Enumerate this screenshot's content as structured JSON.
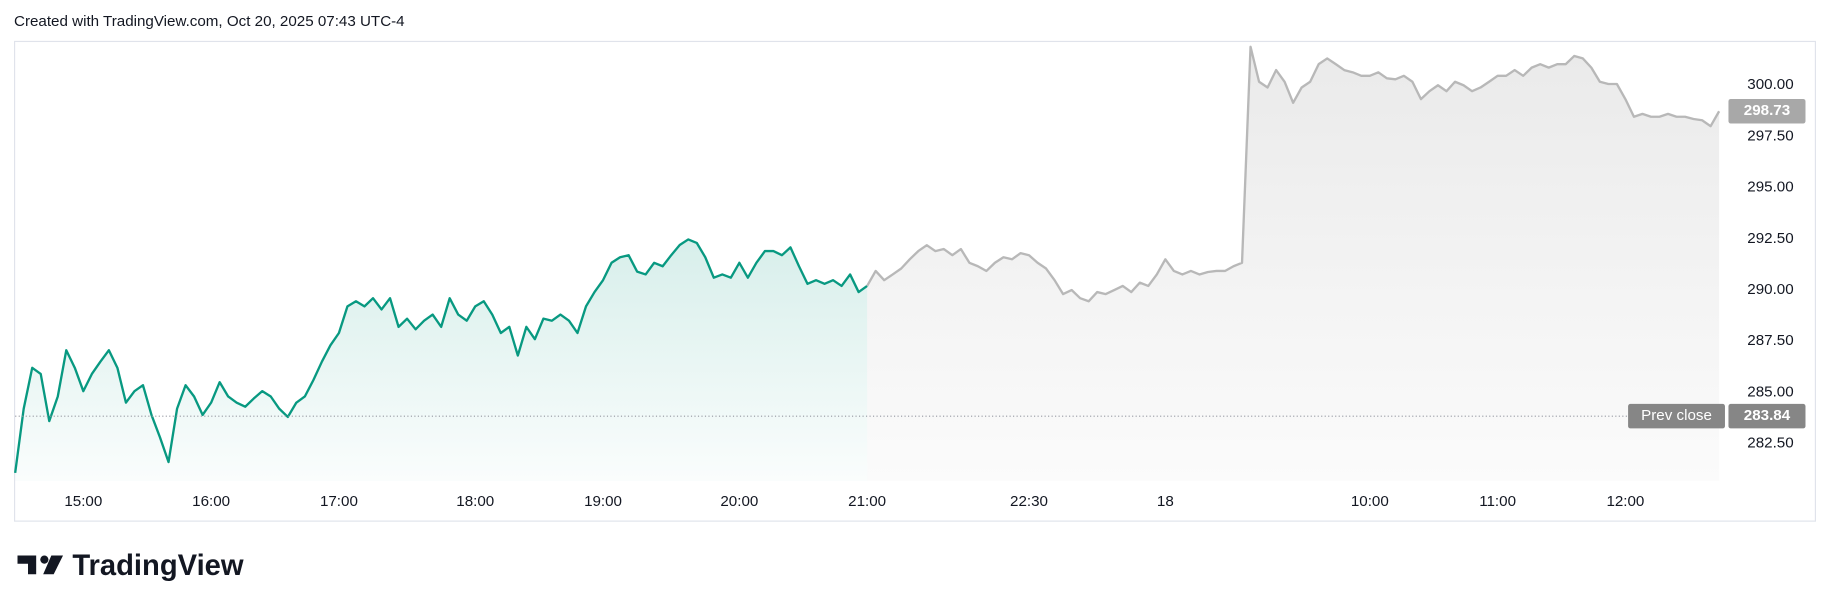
{
  "header": "Created with TradingView.com, Oct 20, 2025 07:43 UTC-4",
  "footer": "TradingView",
  "chart_data": {
    "type": "line",
    "xlim": [
      0,
      200
    ],
    "xticks": [
      {
        "value": 8,
        "label": "15:00"
      },
      {
        "value": 23,
        "label": "16:00"
      },
      {
        "value": 38,
        "label": "17:00"
      },
      {
        "value": 54,
        "label": "18:00"
      },
      {
        "value": 69,
        "label": "19:00"
      },
      {
        "value": 85,
        "label": "20:00"
      },
      {
        "value": 100,
        "label": "21:00"
      },
      {
        "value": 119,
        "label": "22:30"
      },
      {
        "value": 135,
        "label": "18"
      },
      {
        "value": 159,
        "label": "10:00"
      },
      {
        "value": 174,
        "label": "11:00"
      },
      {
        "value": 189,
        "label": "12:00"
      }
    ],
    "ylim": [
      280.68,
      302.11
    ],
    "yticks": [
      {
        "value": 282.5,
        "label": "282.50"
      },
      {
        "value": 285,
        "label": "285.00"
      },
      {
        "value": 287.5,
        "label": "287.50"
      },
      {
        "value": 290,
        "label": "290.00"
      },
      {
        "value": 292.5,
        "label": "292.50"
      },
      {
        "value": 295,
        "label": "295.00"
      },
      {
        "value": 297.5,
        "label": "297.50"
      },
      {
        "value": 300,
        "label": "300.00"
      }
    ],
    "prev_close": {
      "label": "Prev close",
      "value": 283.84
    },
    "series": [
      {
        "color": "#089981",
        "values": [
          281.07,
          284.2,
          286.2,
          285.9,
          283.6,
          284.8,
          287.06,
          286.2,
          285.06,
          285.9,
          286.5,
          287.06,
          286.2,
          284.5,
          285.06,
          285.35,
          283.9,
          282.8,
          281.6,
          284.2,
          285.35,
          284.8,
          283.9,
          284.5,
          285.5,
          284.8,
          284.5,
          284.3,
          284.7,
          285.06,
          284.8,
          284.2,
          283.8,
          284.5,
          284.8,
          285.6,
          286.5,
          287.3,
          287.9,
          289.2,
          289.45,
          289.2,
          289.6,
          289.05,
          289.6,
          288.2,
          288.6,
          288.08,
          288.5,
          288.8,
          288.2,
          289.6,
          288.8,
          288.5,
          289.2,
          289.45,
          288.8,
          287.9,
          288.2,
          286.8,
          288.2,
          287.6,
          288.6,
          288.5,
          288.8,
          288.5,
          287.9,
          289.2,
          289.9,
          290.48,
          291.33,
          291.6,
          291.7,
          290.9,
          290.76,
          291.33,
          291.16,
          291.7,
          292.2,
          292.47,
          292.3,
          291.6,
          290.6,
          290.76,
          290.6,
          291.33,
          290.6,
          291.33,
          291.9,
          291.9,
          291.7,
          292.08,
          291.16,
          290.3,
          290.48,
          290.3,
          290.48,
          290.2,
          290.76,
          289.9,
          290.2,
          null,
          null,
          null,
          null,
          null,
          null,
          null,
          null,
          null,
          null,
          null,
          null,
          null,
          null,
          null,
          null,
          null,
          null,
          null,
          null,
          null,
          null,
          null,
          null,
          null,
          null,
          null,
          null,
          null,
          null,
          null,
          null,
          null,
          null,
          null,
          null,
          null,
          null,
          null,
          null,
          null,
          null,
          null,
          null,
          null,
          null,
          null,
          null,
          null,
          null,
          null,
          null,
          null,
          null,
          null,
          null,
          null,
          null,
          null,
          null,
          null,
          null,
          null,
          null,
          null,
          null,
          null,
          null,
          null,
          null,
          null,
          null,
          null,
          null,
          null,
          null,
          null,
          null,
          null,
          null,
          null,
          null,
          null,
          null,
          null,
          null,
          null,
          null,
          null,
          null,
          null,
          null,
          null,
          null,
          null,
          null,
          null,
          null,
          null,
          null
        ]
      },
      {
        "color": "#b8b8b8",
        "values": [
          null,
          null,
          null,
          null,
          null,
          null,
          null,
          null,
          null,
          null,
          null,
          null,
          null,
          null,
          null,
          null,
          null,
          null,
          null,
          null,
          null,
          null,
          null,
          null,
          null,
          null,
          null,
          null,
          null,
          null,
          null,
          null,
          null,
          null,
          null,
          null,
          null,
          null,
          null,
          null,
          null,
          null,
          null,
          null,
          null,
          null,
          null,
          null,
          null,
          null,
          null,
          null,
          null,
          null,
          null,
          null,
          null,
          null,
          null,
          null,
          null,
          null,
          null,
          null,
          null,
          null,
          null,
          null,
          null,
          null,
          null,
          null,
          null,
          null,
          null,
          null,
          null,
          null,
          null,
          null,
          null,
          null,
          null,
          null,
          null,
          null,
          null,
          null,
          null,
          null,
          null,
          null,
          null,
          null,
          null,
          null,
          null,
          null,
          null,
          null,
          290.2,
          290.93,
          290.48,
          290.76,
          291.05,
          291.5,
          291.9,
          292.19,
          291.9,
          292.0,
          291.7,
          292.0,
          291.33,
          291.16,
          290.93,
          291.33,
          291.6,
          291.5,
          291.8,
          291.7,
          291.33,
          291.05,
          290.48,
          289.8,
          290.0,
          289.6,
          289.45,
          289.9,
          289.8,
          290.0,
          290.2,
          289.9,
          290.36,
          290.2,
          290.76,
          291.5,
          290.93,
          290.76,
          290.93,
          290.76,
          290.88,
          290.93,
          290.93,
          291.16,
          291.33,
          301.88,
          300.17,
          299.89,
          300.74,
          300.17,
          299.14,
          299.89,
          300.17,
          301.03,
          301.31,
          301.03,
          300.74,
          300.63,
          300.46,
          300.46,
          300.63,
          300.34,
          300.29,
          300.46,
          300.17,
          299.32,
          299.71,
          300.0,
          299.71,
          300.17,
          300.0,
          299.71,
          299.89,
          300.17,
          300.46,
          300.46,
          300.74,
          300.46,
          300.86,
          301.03,
          300.86,
          301.03,
          301.03,
          301.43,
          301.31,
          300.86,
          300.17,
          300.06,
          300.06,
          299.32,
          298.46,
          298.6,
          298.46,
          298.46,
          298.6,
          298.46,
          298.46,
          298.35,
          298.29,
          298.0,
          298.73
        ]
      }
    ]
  }
}
